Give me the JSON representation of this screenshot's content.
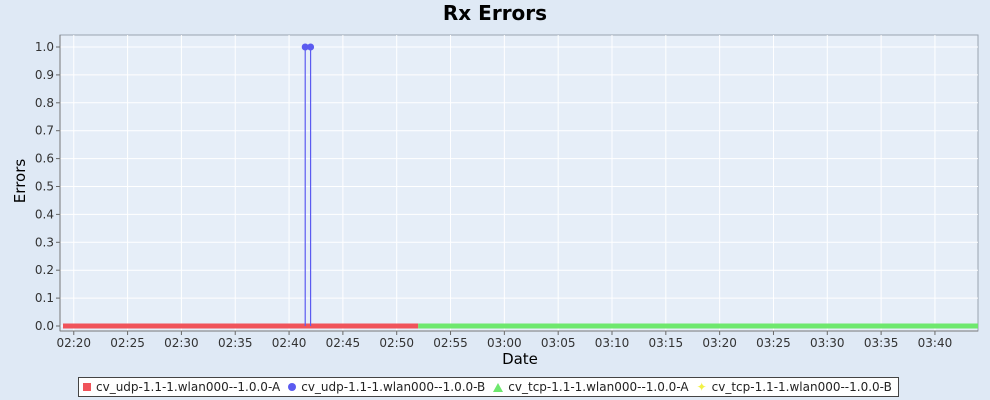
{
  "chart_data": {
    "type": "line",
    "title": "Rx Errors",
    "xlabel": "Date",
    "ylabel": "Errors",
    "x_ticks": [
      "02:20",
      "02:25",
      "02:30",
      "02:35",
      "02:40",
      "02:45",
      "02:50",
      "02:55",
      "03:00",
      "03:05",
      "03:10",
      "03:15",
      "03:20",
      "03:25",
      "03:30",
      "03:35",
      "03:40"
    ],
    "y_ticks": [
      "0.0",
      "0.1",
      "0.2",
      "0.3",
      "0.4",
      "0.5",
      "0.6",
      "0.7",
      "0.8",
      "0.9",
      "1.0"
    ],
    "xlim": [
      "02:19",
      "03:44"
    ],
    "ylim": [
      0,
      1.05
    ],
    "grid": true,
    "legend_position": "bottom",
    "series": [
      {
        "name": "cv_udp-1.1-1.wlan000--1.0.0-A",
        "color": "#f0535a",
        "marker": "square",
        "points": [
          [
            "02:19",
            0
          ],
          [
            "02:52",
            0
          ]
        ]
      },
      {
        "name": "cv_udp-1.1-1.wlan000--1.0.0-B",
        "color": "#5b5bf0",
        "marker": "circle",
        "points": [
          [
            "02:41.5",
            0
          ],
          [
            "02:41.5",
            1.0
          ],
          [
            "02:42",
            1.0
          ],
          [
            "02:42",
            0
          ]
        ]
      },
      {
        "name": "cv_tcp-1.1-1.wlan000--1.0.0-A",
        "color": "#6ee86e",
        "marker": "triangle",
        "points": [
          [
            "02:52",
            0
          ],
          [
            "03:44",
            0
          ]
        ]
      },
      {
        "name": "cv_tcp-1.1-1.wlan000--1.0.0-B",
        "color": "#f2f246",
        "marker": "star",
        "points": []
      }
    ]
  }
}
